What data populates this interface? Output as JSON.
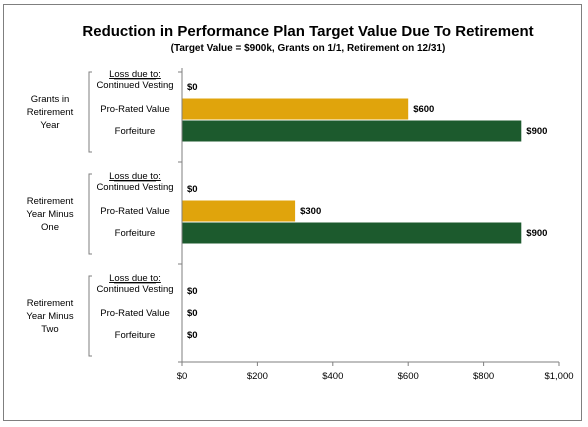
{
  "chart_data": {
    "type": "bar",
    "orientation": "horizontal",
    "title": "Reduction in Performance Plan Target Value Due To Retirement",
    "subtitle": "(Target Value = $900k, Grants on 1/1, Retirement on 12/31)",
    "header_label": "Loss due to:",
    "groups": [
      {
        "name_lines": [
          "Grants in",
          "Retirement",
          "Year"
        ],
        "bars": [
          {
            "label": "Continued Vesting",
            "value": 0,
            "value_label": "$0",
            "color": "#e0a40c"
          },
          {
            "label": "Pro-Rated Value",
            "value": 600,
            "value_label": "$600",
            "color": "#e0a40c"
          },
          {
            "label": "Forfeiture",
            "value": 900,
            "value_label": "$900",
            "color": "#1c5a2d"
          }
        ]
      },
      {
        "name_lines": [
          "Retirement",
          "Year Minus",
          "One"
        ],
        "bars": [
          {
            "label": "Continued Vesting",
            "value": 0,
            "value_label": "$0",
            "color": "#e0a40c"
          },
          {
            "label": "Pro-Rated Value",
            "value": 300,
            "value_label": "$300",
            "color": "#e0a40c"
          },
          {
            "label": "Forfeiture",
            "value": 900,
            "value_label": "$900",
            "color": "#1c5a2d"
          }
        ]
      },
      {
        "name_lines": [
          "Retirement",
          "Year Minus",
          "Two"
        ],
        "bars": [
          {
            "label": "Continued Vesting",
            "value": 0,
            "value_label": "$0",
            "color": "#e0a40c"
          },
          {
            "label": "Pro-Rated Value",
            "value": 0,
            "value_label": "$0",
            "color": "#e0a40c"
          },
          {
            "label": "Forfeiture",
            "value": 0,
            "value_label": "$0",
            "color": "#1c5a2d"
          }
        ]
      }
    ],
    "xlim": [
      0,
      1000
    ],
    "xticks": [
      0,
      200,
      400,
      600,
      800,
      1000
    ],
    "xtick_labels": [
      "$0",
      "$200",
      "$400",
      "$600",
      "$800",
      "$1,000"
    ],
    "grid": false,
    "legend": "none"
  }
}
